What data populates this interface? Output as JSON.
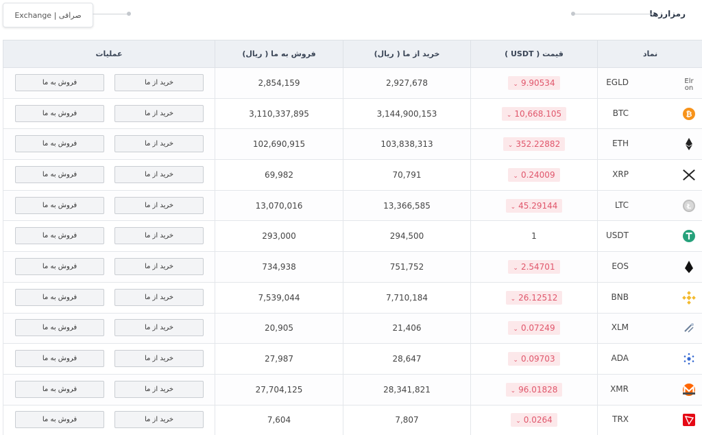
{
  "header": {
    "title": "رمزارزها",
    "exchange_tab": "صرافی | Exchange"
  },
  "table": {
    "columns": {
      "symbol": "نماد",
      "price": "قیمت ( USDT )",
      "buy": "خرید از ما ( ریال)",
      "sell": "فروش به ما ( ریال)",
      "ops": "عملیات"
    },
    "buy_button": "خرید از ما",
    "sell_button": "فروش به ما",
    "rows": [
      {
        "symbol": "EGLD",
        "icon": "egld-broken-image-icon",
        "icon_alt": "Elr on",
        "price": "9.90534",
        "trend": "down",
        "buy": "2,927,678",
        "sell": "2,854,159"
      },
      {
        "symbol": "BTC",
        "icon": "bitcoin-icon",
        "price": "10,668.105",
        "trend": "down",
        "buy": "3,144,900,153",
        "sell": "3,110,337,895"
      },
      {
        "symbol": "ETH",
        "icon": "ethereum-icon",
        "price": "352.22882",
        "trend": "down",
        "buy": "103,838,313",
        "sell": "102,690,915"
      },
      {
        "symbol": "XRP",
        "icon": "xrp-icon",
        "price": "0.24009",
        "trend": "down",
        "buy": "70,791",
        "sell": "69,982"
      },
      {
        "symbol": "LTC",
        "icon": "litecoin-icon",
        "price": "45.29144",
        "trend": "down",
        "buy": "13,366,585",
        "sell": "13,070,016"
      },
      {
        "symbol": "USDT",
        "icon": "tether-icon",
        "price": "1",
        "trend": "none",
        "buy": "294,500",
        "sell": "293,000"
      },
      {
        "symbol": "EOS",
        "icon": "eos-icon",
        "price": "2.54701",
        "trend": "down",
        "buy": "751,752",
        "sell": "734,938"
      },
      {
        "symbol": "BNB",
        "icon": "binance-icon",
        "price": "26.12512",
        "trend": "down",
        "buy": "7,710,184",
        "sell": "7,539,044"
      },
      {
        "symbol": "XLM",
        "icon": "stellar-icon",
        "price": "0.07249",
        "trend": "down",
        "buy": "21,406",
        "sell": "20,905"
      },
      {
        "symbol": "ADA",
        "icon": "cardano-icon",
        "price": "0.09703",
        "trend": "down",
        "buy": "28,647",
        "sell": "27,987"
      },
      {
        "symbol": "XMR",
        "icon": "monero-icon",
        "price": "96.01828",
        "trend": "down",
        "buy": "28,341,821",
        "sell": "27,704,125"
      },
      {
        "symbol": "TRX",
        "icon": "tron-icon",
        "price": "0.0264",
        "trend": "down",
        "buy": "7,807",
        "sell": "7,604"
      }
    ]
  },
  "colors": {
    "header_bg": "#edf0f4",
    "badge_bg": "#fce8ea",
    "badge_text": "#e0566b",
    "bitcoin": "#f7931a",
    "tether": "#26a17b",
    "binance": "#f3ba2f",
    "monero": "#ff6600",
    "tron": "#e50915",
    "cardano": "#3468d1"
  }
}
